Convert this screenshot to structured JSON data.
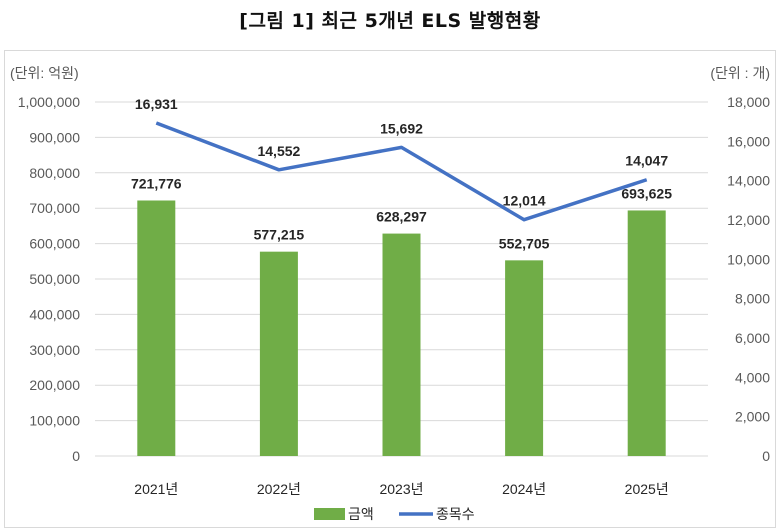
{
  "chart_data": {
    "type": "bar+line",
    "title": "[그림 1] 최근 5개년 ELS 발행현황",
    "left_unit": "(단위: 억원)",
    "right_unit": "(단위 : 개)",
    "categories": [
      "2021년",
      "2022년",
      "2023년",
      "2024년",
      "2025년"
    ],
    "series": [
      {
        "name": "금액",
        "type": "bar",
        "axis": "left",
        "color": "#70ad47",
        "values": [
          721776,
          577215,
          628297,
          552705,
          693625
        ],
        "labels": [
          "721,776",
          "577,215",
          "628,297",
          "552,705",
          "693,625"
        ]
      },
      {
        "name": "종목수",
        "type": "line",
        "axis": "right",
        "color": "#4472c4",
        "values": [
          16931,
          14552,
          15692,
          12014,
          14047
        ],
        "labels": [
          "16,931",
          "14,552",
          "15,692",
          "12,014",
          "14,047"
        ]
      }
    ],
    "left_axis": {
      "range": [
        0,
        1000000
      ],
      "ticks": [
        "0",
        "100,000",
        "200,000",
        "300,000",
        "400,000",
        "500,000",
        "600,000",
        "700,000",
        "800,000",
        "900,000",
        "1,000,000"
      ]
    },
    "right_axis": {
      "range": [
        0,
        18000
      ],
      "ticks": [
        "0",
        "2,000",
        "4,000",
        "6,000",
        "8,000",
        "10,000",
        "12,000",
        "14,000",
        "16,000",
        "18,000"
      ]
    },
    "grid": true,
    "legend": "bottom"
  }
}
